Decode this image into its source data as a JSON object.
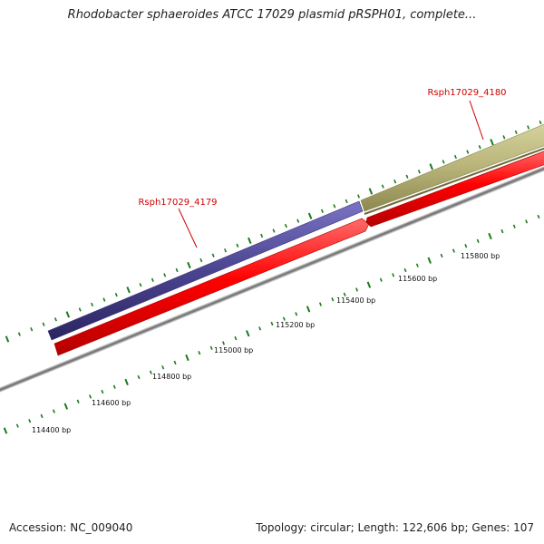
{
  "title": "Rhodobacter sphaeroides ATCC 17029 plasmid pRSPH01, complete...",
  "footer": {
    "accession": "Accession: NC_009040",
    "summary": "Topology: circular; Length: 122,606 bp; Genes: 107"
  },
  "genes": [
    {
      "label": "Rsph17029_4179",
      "feature_color": "#4b4490"
    },
    {
      "label": "Rsph17029_4180",
      "feature_color": "#b8b479"
    }
  ],
  "ruler": {
    "labels": [
      "114400 bp",
      "114600 bp",
      "114800 bp",
      "115000 bp",
      "115200 bp",
      "115400 bp",
      "115600 bp",
      "115800 bp"
    ]
  },
  "colors": {
    "cds": "#ff0000",
    "backbone": "#808080",
    "tick": "#1b7a1b",
    "gene_label": "#cc0000"
  }
}
